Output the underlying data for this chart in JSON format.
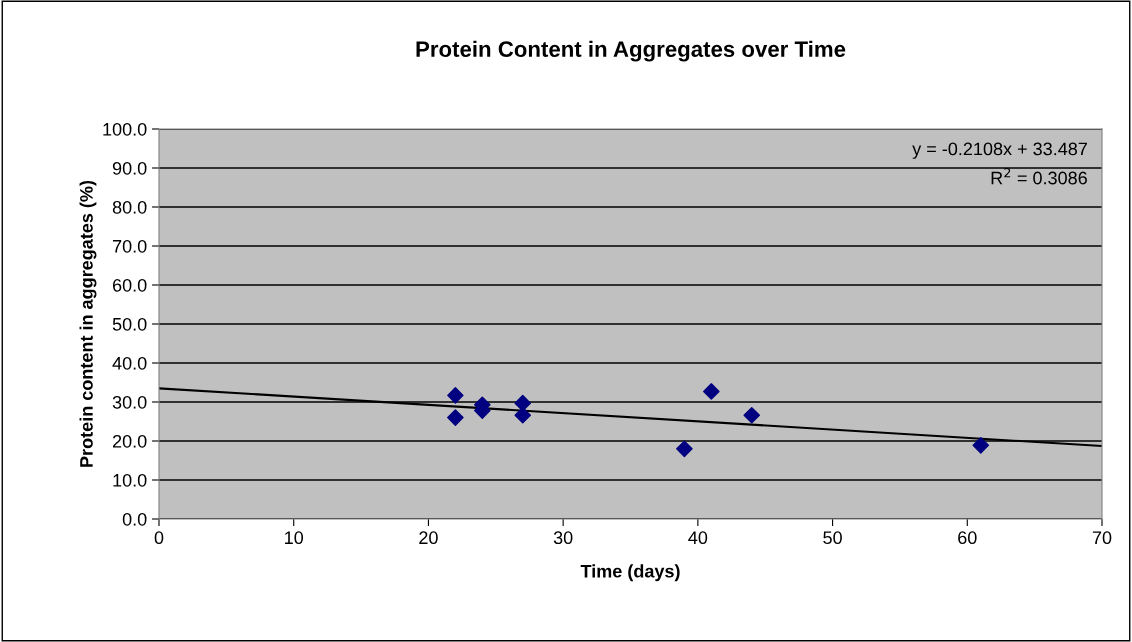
{
  "chart_data": {
    "type": "scatter",
    "title": "Protein Content in Aggregates over Time",
    "xlabel": "Time (days)",
    "ylabel": "Protein content in aggregates (%)",
    "series": [
      {
        "color": "#000080",
        "marker": "diamond",
        "x": [
          22,
          22,
          24,
          24,
          27,
          27,
          39,
          41,
          44,
          61
        ],
        "values": [
          31.7,
          26.0,
          29.3,
          27.8,
          29.7,
          26.6,
          18.0,
          32.7,
          26.6,
          18.9
        ]
      },
      {
        "type": "line",
        "color": "#000000",
        "marker": "none",
        "line_style": "solid",
        "x": [
          0,
          70
        ],
        "values": [
          33.5,
          18.7
        ]
      }
    ],
    "annotations": [
      "y = -0.2108x + 33.487",
      "R$^{2}$ = 0.3086"
    ],
    "xlim": [
      0,
      70
    ],
    "xticks": [
      0,
      10,
      20,
      30,
      40,
      50,
      60,
      70
    ],
    "ylim": [
      0,
      100
    ],
    "yticks": [
      {
        "value": 0,
        "label": "0.0"
      },
      {
        "value": 10,
        "label": "10.0"
      },
      {
        "value": 20,
        "label": "20.0"
      },
      {
        "value": 30,
        "label": "30.0"
      },
      {
        "value": 40,
        "label": "40.0"
      },
      {
        "value": 50,
        "label": "50.0"
      },
      {
        "value": 60,
        "label": "60.0"
      },
      {
        "value": 70,
        "label": "70.0"
      },
      {
        "value": 80,
        "label": "80.0"
      },
      {
        "value": 90,
        "label": "90.0"
      },
      {
        "value": 100,
        "label": "100.0"
      }
    ],
    "grid": "y",
    "legend": false
  }
}
